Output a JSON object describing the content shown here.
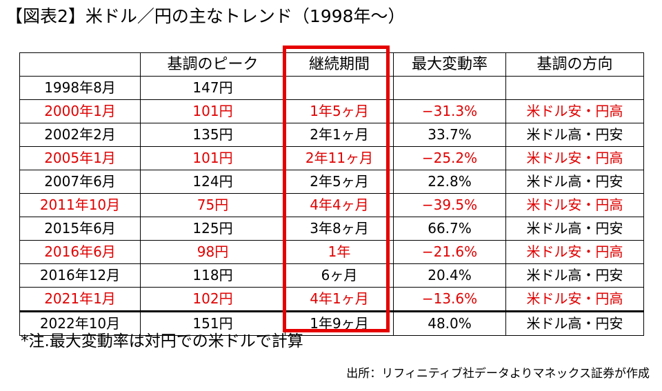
{
  "title": "【図表2】米ドル／円の主なトレンド（1998年～）",
  "table": {
    "headers": [
      "",
      "基調のピーク",
      "継続期間",
      "最大変動率",
      "基調の方向"
    ],
    "rows": [
      {
        "date": "1998年8月",
        "peak": "147円",
        "duration": "",
        "change": "",
        "direction": "",
        "color": "#000000"
      },
      {
        "date": "2000年1月",
        "peak": "101円",
        "duration": "1年5ヶ月",
        "change": "−31.3%",
        "direction": "米ドル安・円高",
        "color": "#e00000"
      },
      {
        "date": "2002年2月",
        "peak": "135円",
        "duration": "2年1ヶ月",
        "change": "33.7%",
        "direction": "米ドル高・円安",
        "color": "#000000"
      },
      {
        "date": "2005年1月",
        "peak": "101円",
        "duration": "2年11ヶ月",
        "change": "−25.2%",
        "direction": "米ドル安・円高",
        "color": "#e00000"
      },
      {
        "date": "2007年6月",
        "peak": "124円",
        "duration": "2年5ヶ月",
        "change": "22.8%",
        "direction": "米ドル高・円安",
        "color": "#000000"
      },
      {
        "date": "2011年10月",
        "peak": "75円",
        "duration": "4年4ヶ月",
        "change": "−39.5%",
        "direction": "米ドル安・円高",
        "color": "#e00000"
      },
      {
        "date": "2015年6月",
        "peak": "125円",
        "duration": "3年8ヶ月",
        "change": "66.7%",
        "direction": "米ドル高・円安",
        "color": "#000000"
      },
      {
        "date": "2016年6月",
        "peak": "98円",
        "duration": "1年",
        "change": "−21.6%",
        "direction": "米ドル安・円高",
        "color": "#e00000"
      },
      {
        "date": "2016年12月",
        "peak": "118円",
        "duration": "6ヶ月",
        "change": "20.4%",
        "direction": "米ドル高・円安",
        "color": "#000000"
      },
      {
        "date": "2021年1月",
        "peak": "102円",
        "duration": "4年1ヶ月",
        "change": "−13.6%",
        "direction": "米ドル安・円高",
        "color": "#e00000"
      },
      {
        "date": "2022年10月",
        "peak": "151円",
        "duration": "1年9ヶ月",
        "change": "48.0%",
        "direction": "米ドル高・円安",
        "color": "#000000"
      }
    ]
  },
  "note": "*注.最大変動率は対円での米ドルで計算",
  "source": "出所：リフィニティブ社データよりマネックス証券が作成",
  "colors": {
    "highlight_border": "#e60000",
    "downtrend_text": "#e00000"
  }
}
